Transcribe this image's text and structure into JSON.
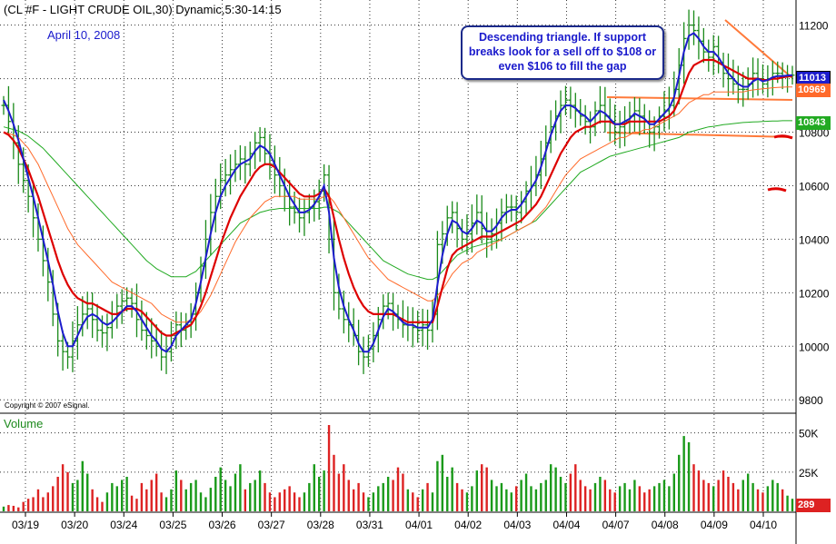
{
  "header": "(CL #F - LIGHT CRUDE OIL,30) Dynamic,5:30-14:15",
  "date_label": "April 10, 2008",
  "annotation": "Descending triangle. If support breaks look for a sell off to $108 or even $106 to fill the gap",
  "copyright": "Copyright © 2007 eSignal.",
  "volume_label": "Volume",
  "badges": {
    "last": "11013",
    "orange_ma": "10969",
    "green_ma": "10843",
    "volume": "289"
  },
  "colors": {
    "price_bar": "#1a8a1a",
    "fast_ma": "#1c1ccc",
    "mid_ma": "#dd0000",
    "slow_ma": "#ff6a2a",
    "long_ma": "#22aa22",
    "trendline": "#ff7a3a",
    "vol_up": "#1a9a1a",
    "vol_down": "#dd2222"
  },
  "chart_data": {
    "type": "line",
    "title": "(CL #F - LIGHT CRUDE OIL,30) Dynamic,5:30-14:15",
    "price_axis": {
      "ticks": [
        9800,
        10000,
        10200,
        10400,
        10600,
        10800,
        11000,
        11200
      ],
      "range": [
        9760,
        11260
      ]
    },
    "volume_axis": {
      "ticks": [
        "25K",
        "50K"
      ],
      "range": [
        0,
        55000
      ]
    },
    "x_labels": [
      "03/19",
      "03/20",
      "03/24",
      "03/25",
      "03/26",
      "03/27",
      "03/28",
      "03/31",
      "04/01",
      "04/02",
      "04/03",
      "04/04",
      "04/07",
      "04/08",
      "04/09",
      "04/10"
    ],
    "x": [
      0,
      1,
      2,
      3,
      4,
      5,
      6,
      7,
      8,
      9,
      10,
      11,
      12,
      13,
      14,
      15,
      16,
      17,
      18,
      19,
      20,
      21,
      22,
      23,
      24,
      25,
      26,
      27,
      28,
      29,
      30,
      31,
      32,
      33,
      34,
      35,
      36,
      37,
      38,
      39,
      40,
      41,
      42,
      43,
      44,
      45,
      46,
      47,
      48,
      49,
      50,
      51,
      52,
      53,
      54,
      55,
      56,
      57,
      58,
      59,
      60,
      61,
      62,
      63,
      64,
      65,
      66,
      67,
      68,
      69,
      70,
      71,
      72,
      73,
      74,
      75,
      76,
      77,
      78,
      79,
      80,
      81,
      82,
      83,
      84,
      85,
      86,
      87,
      88,
      89,
      90,
      91,
      92,
      93,
      94,
      95,
      96,
      97,
      98,
      99,
      100,
      101,
      102,
      103,
      104,
      105,
      106,
      107,
      108,
      109,
      110,
      111,
      112,
      113,
      114,
      115,
      116,
      117,
      118,
      119,
      120,
      121,
      122,
      123,
      124,
      125,
      126,
      127,
      128,
      129,
      130,
      131,
      132,
      133,
      134,
      135,
      136,
      137,
      138,
      139,
      140,
      141,
      142,
      143,
      144,
      145,
      146,
      147,
      148,
      149,
      150,
      151,
      152,
      153,
      154,
      155,
      156,
      157,
      158,
      159,
      160
    ],
    "close": [
      10900,
      10840,
      10760,
      10680,
      10620,
      10560,
      10480,
      10400,
      10320,
      10240,
      10120,
      10020,
      9980,
      9960,
      10020,
      10080,
      10120,
      10140,
      10100,
      10060,
      10050,
      10070,
      10120,
      10150,
      10170,
      10180,
      10160,
      10100,
      10060,
      10040,
      10020,
      10000,
      9960,
      9980,
      10040,
      10080,
      10060,
      10080,
      10120,
      10200,
      10300,
      10400,
      10500,
      10560,
      10620,
      10640,
      10660,
      10680,
      10700,
      10680,
      10720,
      10760,
      10780,
      10720,
      10680,
      10640,
      10600,
      10560,
      10520,
      10500,
      10480,
      10500,
      10520,
      10540,
      10580,
      10640,
      10400,
      10200,
      10140,
      10100,
      10080,
      10040,
      9980,
      9960,
      9990,
      10040,
      10100,
      10150,
      10160,
      10120,
      10100,
      10080,
      10080,
      10070,
      10060,
      10080,
      10060,
      10120,
      10380,
      10420,
      10480,
      10500,
      10440,
      10400,
      10420,
      10460,
      10500,
      10440,
      10400,
      10420,
      10460,
      10500,
      10520,
      10520,
      10500,
      10540,
      10580,
      10600,
      10640,
      10700,
      10760,
      10820,
      10860,
      10900,
      10920,
      10900,
      10880,
      10860,
      10840,
      10820,
      10880,
      10900,
      10860,
      10840,
      10800,
      10820,
      10840,
      10860,
      10880,
      10860,
      10840,
      10800,
      10820,
      10860,
      10880,
      10900,
      10960,
      11050,
      11150,
      11200,
      11180,
      11140,
      11100,
      11080,
      11120,
      11060,
      11020,
      11000,
      10980,
      10960,
      10960,
      10980,
      11020,
      11000,
      10980,
      11000,
      11020,
      11020,
      11010,
      11013,
      11013
    ],
    "series": [
      {
        "name": "",
        "key": "fast_ma",
        "values": [
          10920,
          10880,
          10830,
          10770,
          10700,
          10630,
          10560,
          10480,
          10400,
          10320,
          10230,
          10130,
          10050,
          10000,
          10000,
          10040,
          10080,
          10110,
          10120,
          10110,
          10090,
          10080,
          10090,
          10110,
          10130,
          10150,
          10150,
          10130,
          10100,
          10070,
          10040,
          10020,
          9990,
          9980,
          10000,
          10040,
          10060,
          10080,
          10100,
          10160,
          10240,
          10330,
          10420,
          10500,
          10560,
          10600,
          10630,
          10660,
          10680,
          10690,
          10700,
          10730,
          10750,
          10740,
          10720,
          10680,
          10640,
          10600,
          10560,
          10530,
          10500,
          10500,
          10510,
          10530,
          10560,
          10600,
          10500,
          10330,
          10220,
          10150,
          10100,
          10060,
          10010,
          9980,
          9980,
          10010,
          10060,
          10110,
          10140,
          10130,
          10110,
          10090,
          10080,
          10080,
          10070,
          10070,
          10070,
          10100,
          10230,
          10340,
          10420,
          10470,
          10460,
          10430,
          10420,
          10440,
          10470,
          10460,
          10430,
          10430,
          10450,
          10480,
          10500,
          10510,
          10510,
          10530,
          10560,
          10590,
          10620,
          10670,
          10730,
          10790,
          10840,
          10880,
          10900,
          10900,
          10890,
          10870,
          10860,
          10840,
          10860,
          10880,
          10870,
          10850,
          10830,
          10830,
          10840,
          10850,
          10870,
          10860,
          10850,
          10830,
          10830,
          10850,
          10870,
          10890,
          10930,
          11010,
          11100,
          11160,
          11170,
          11150,
          11120,
          11100,
          11100,
          11080,
          11050,
          11020,
          11000,
          10980,
          10970,
          10970,
          10990,
          11000,
          10990,
          10995,
          11005,
          11010,
          11010,
          11012,
          11013
        ]
      },
      {
        "name": "",
        "key": "mid_ma",
        "values": [
          10800,
          10790,
          10770,
          10740,
          10700,
          10660,
          10610,
          10560,
          10500,
          10440,
          10380,
          10320,
          10270,
          10230,
          10200,
          10180,
          10170,
          10160,
          10160,
          10150,
          10140,
          10130,
          10120,
          10120,
          10130,
          10140,
          10140,
          10140,
          10130,
          10110,
          10090,
          10070,
          10050,
          10040,
          10040,
          10050,
          10060,
          10070,
          10080,
          10110,
          10150,
          10200,
          10260,
          10320,
          10380,
          10430,
          10480,
          10520,
          10560,
          10590,
          10620,
          10650,
          10670,
          10680,
          10680,
          10670,
          10650,
          10630,
          10610,
          10590,
          10570,
          10560,
          10560,
          10560,
          10570,
          10590,
          10560,
          10480,
          10400,
          10330,
          10270,
          10220,
          10180,
          10150,
          10130,
          10120,
          10120,
          10120,
          10120,
          10120,
          10110,
          10100,
          10090,
          10090,
          10090,
          10090,
          10090,
          10090,
          10150,
          10220,
          10290,
          10340,
          10360,
          10370,
          10380,
          10390,
          10400,
          10410,
          10410,
          10410,
          10420,
          10430,
          10440,
          10450,
          10460,
          10470,
          10490,
          10510,
          10530,
          10560,
          10600,
          10640,
          10680,
          10720,
          10750,
          10780,
          10800,
          10810,
          10820,
          10820,
          10830,
          10840,
          10840,
          10840,
          10830,
          10830,
          10830,
          10840,
          10840,
          10840,
          10840,
          10840,
          10840,
          10840,
          10850,
          10860,
          10880,
          10920,
          10970,
          11020,
          11050,
          11060,
          11070,
          11070,
          11070,
          11060,
          11050,
          11040,
          11030,
          11020,
          11010,
          11000,
          11000,
          11000,
          10995,
          10995,
          11000,
          11000,
          11005,
          11008,
          11010
        ]
      },
      {
        "name": "",
        "key": "slow_ma",
        "values": [
          10800,
          10795,
          10790,
          10780,
          10760,
          10740,
          10710,
          10680,
          10640,
          10600,
          10560,
          10520,
          10480,
          10440,
          10410,
          10380,
          10360,
          10340,
          10320,
          10300,
          10280,
          10260,
          10240,
          10230,
          10220,
          10210,
          10200,
          10190,
          10180,
          10170,
          10160,
          10140,
          10120,
          10110,
          10100,
          10090,
          10090,
          10090,
          10100,
          10110,
          10130,
          10160,
          10190,
          10230,
          10270,
          10310,
          10350,
          10390,
          10420,
          10450,
          10480,
          10500,
          10520,
          10540,
          10550,
          10560,
          10560,
          10560,
          10560,
          10560,
          10550,
          10550,
          10550,
          10550,
          10550,
          10560,
          10560,
          10540,
          10510,
          10480,
          10450,
          10420,
          10390,
          10360,
          10330,
          10310,
          10290,
          10270,
          10250,
          10240,
          10230,
          10220,
          10210,
          10200,
          10190,
          10180,
          10170,
          10170,
          10190,
          10210,
          10240,
          10270,
          10290,
          10310,
          10320,
          10330,
          10350,
          10360,
          10370,
          10380,
          10390,
          10400,
          10410,
          10420,
          10430,
          10440,
          10450,
          10460,
          10480,
          10500,
          10520,
          10550,
          10580,
          10610,
          10640,
          10660,
          10680,
          10700,
          10710,
          10720,
          10730,
          10740,
          10750,
          10760,
          10770,
          10780,
          10780,
          10790,
          10800,
          10800,
          10810,
          10810,
          10820,
          10830,
          10840,
          10850,
          10860,
          10870,
          10890,
          10910,
          10920,
          10930,
          10940,
          10940,
          10950,
          10950,
          10950,
          10950,
          10950,
          10950,
          10950,
          10955,
          10958,
          10960,
          10962,
          10964,
          10966,
          10967,
          10968,
          10969,
          10969
        ]
      },
      {
        "name": "",
        "key": "long_ma",
        "values": [
          10820,
          10815,
          10810,
          10805,
          10795,
          10785,
          10770,
          10755,
          10740,
          10720,
          10700,
          10680,
          10660,
          10640,
          10620,
          10600,
          10580,
          10560,
          10540,
          10520,
          10500,
          10480,
          10460,
          10440,
          10420,
          10400,
          10380,
          10360,
          10340,
          10320,
          10305,
          10290,
          10280,
          10270,
          10260,
          10260,
          10260,
          10260,
          10270,
          10280,
          10300,
          10320,
          10340,
          10360,
          10380,
          10400,
          10420,
          10440,
          10460,
          10470,
          10480,
          10490,
          10500,
          10505,
          10510,
          10512,
          10515,
          10515,
          10515,
          10515,
          10515,
          10515,
          10515,
          10515,
          10515,
          10520,
          10520,
          10510,
          10500,
          10480,
          10460,
          10440,
          10420,
          10400,
          10380,
          10360,
          10340,
          10320,
          10310,
          10300,
          10290,
          10280,
          10270,
          10265,
          10260,
          10255,
          10250,
          10250,
          10260,
          10280,
          10300,
          10320,
          10340,
          10350,
          10360,
          10370,
          10375,
          10380,
          10385,
          10390,
          10395,
          10400,
          10410,
          10420,
          10430,
          10440,
          10450,
          10460,
          10470,
          10490,
          10510,
          10530,
          10550,
          10570,
          10590,
          10610,
          10630,
          10650,
          10660,
          10670,
          10680,
          10690,
          10700,
          10710,
          10715,
          10720,
          10725,
          10730,
          10735,
          10740,
          10745,
          10750,
          10755,
          10760,
          10765,
          10770,
          10775,
          10780,
          10790,
          10800,
          10805,
          10810,
          10815,
          10820,
          10822,
          10825,
          10828,
          10830,
          10832,
          10834,
          10836,
          10837,
          10838,
          10839,
          10840,
          10841,
          10842,
          10842,
          10843,
          10843,
          10843
        ]
      }
    ],
    "volume": [
      3000,
      4000,
      3500,
      2500,
      6000,
      8000,
      9000,
      14000,
      9000,
      12000,
      16000,
      22000,
      30000,
      25000,
      18000,
      20000,
      32000,
      24000,
      14000,
      9000,
      6000,
      12000,
      18000,
      16000,
      20000,
      22000,
      10000,
      8000,
      18000,
      14000,
      20000,
      24000,
      12000,
      9000,
      14000,
      26000,
      20000,
      14000,
      18000,
      20000,
      12000,
      9000,
      15000,
      22000,
      28000,
      20000,
      16000,
      24000,
      30000,
      14000,
      18000,
      20000,
      26000,
      18000,
      12000,
      9000,
      12000,
      14000,
      16000,
      12000,
      9000,
      12000,
      18000,
      30000,
      22000,
      26000,
      55000,
      36000,
      24000,
      30000,
      20000,
      14000,
      18000,
      12000,
      9000,
      12000,
      16000,
      18000,
      22000,
      20000,
      28000,
      24000,
      14000,
      12000,
      9000,
      14000,
      18000,
      12000,
      32000,
      36000,
      22000,
      28000,
      18000,
      14000,
      12000,
      16000,
      26000,
      30000,
      28000,
      20000,
      16000,
      18000,
      14000,
      12000,
      16000,
      20000,
      24000,
      16000,
      14000,
      18000,
      20000,
      30000,
      28000,
      22000,
      18000,
      24000,
      30000,
      20000,
      16000,
      14000,
      18000,
      22000,
      20000,
      14000,
      12000,
      16000,
      18000,
      14000,
      20000,
      16000,
      12000,
      14000,
      16000,
      18000,
      20000,
      16000,
      24000,
      36000,
      48000,
      44000,
      30000,
      26000,
      20000,
      18000,
      16000,
      20000,
      26000,
      22000,
      18000,
      14000,
      20000,
      24000,
      18000,
      14000,
      12000,
      16000,
      20000,
      18000,
      14000,
      10000,
      8000
    ]
  }
}
